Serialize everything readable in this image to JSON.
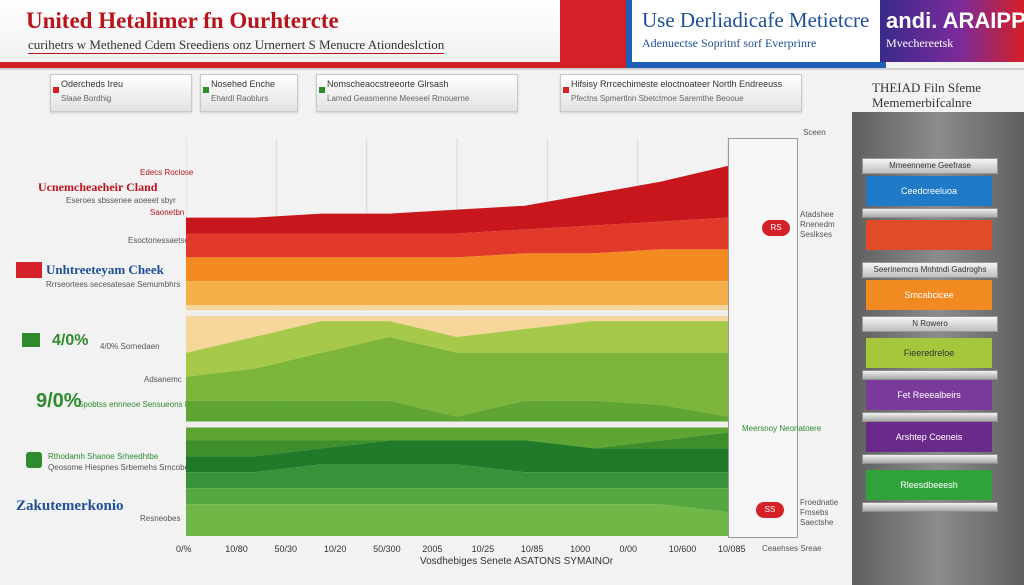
{
  "header": {
    "title": "United Hetalimer fn Ourhtercte",
    "subtitle": "curihetrs w Methened Cdem Sreediens onz Urnernert S Menucre Ationdeslction",
    "mid_title": "Use Derliadicafe Metietcre",
    "mid_subtitle": "Adenuectse Sopritnf sorf Everprinre",
    "right_title": "andi. ARAIPPE",
    "right_subtitle": "Mvechereetsk"
  },
  "infobar": [
    {
      "title": "Odercheds Ireu",
      "sub": "Slaae Bordhig"
    },
    {
      "title": "Nosehed Enche",
      "sub": "Ehardl Raoblurs"
    },
    {
      "title": "Nomscheaocstreeorte Glrsash",
      "sub": "Lamed Geasmenne Meeseel Rmouerne"
    },
    {
      "title": "Hifsisy Rrrcechimeste eloctnoateer Nortlh Endreeuss",
      "sub": "Pfectns Spmertlnn Sbetctmoe Saremthe Beooue"
    }
  ],
  "left_labels": [
    {
      "text": "Edecs Roclose",
      "color": "#b8141c"
    },
    {
      "text": "Ucnemcheaeheir Cland",
      "color": "#b8141c"
    },
    {
      "text": "Eseroes sbssenee aoeeet sbyr",
      "color": "#555555"
    },
    {
      "text": "Saonetbn",
      "color": "#b8141c"
    },
    {
      "text": "Esoctonessaetsee",
      "color": "#555555"
    },
    {
      "text": "Unhtreeteyam Cheek",
      "color": "#1f4f9a"
    },
    {
      "text": "Rrrseortees secesatesae Semumbhrs",
      "color": "#555555"
    },
    {
      "text": "4/0% Sornedaen",
      "color": "#2e8b2e"
    },
    {
      "text": "Adsanemc",
      "color": "#555555"
    },
    {
      "text": "Spobtss ennneoe Sensueons Nerhy",
      "color": "#2e8b2e"
    },
    {
      "text": "Rthodamh Shanoe Srheedhtbe",
      "color": "#2e8b2e"
    },
    {
      "text": "Qeosome Hiespnes Srbemehs Srncobe",
      "color": "#555555"
    },
    {
      "text": "Zakutemerkonio",
      "color": "#1f4f9a"
    },
    {
      "text": "Resneobes",
      "color": "#555555"
    }
  ],
  "left_percent": {
    "a": "4/0%",
    "b": "9/0%"
  },
  "chart_data": {
    "type": "area",
    "title": "",
    "xlabel": "Vosdhebiges Senete ASATONS SYMAINOr",
    "x_ticks": [
      "0/%",
      "10/80",
      "50/30",
      "10/20",
      "50/300",
      "2005",
      "10/25",
      "10/85",
      "1000",
      "0/00",
      "10/600",
      "10/085"
    ],
    "series": [
      {
        "color": "#c8161d",
        "values": [
          0.8,
          0.8,
          0.81,
          0.81,
          0.82,
          0.83,
          0.86,
          0.89,
          0.93
        ]
      },
      {
        "color": "#e23a2a",
        "values": [
          0.76,
          0.76,
          0.76,
          0.76,
          0.76,
          0.77,
          0.78,
          0.79,
          0.8
        ]
      },
      {
        "color": "#f48a22",
        "values": [
          0.7,
          0.7,
          0.7,
          0.7,
          0.7,
          0.71,
          0.71,
          0.72,
          0.72
        ]
      },
      {
        "color": "#f5b04a",
        "values": [
          0.64,
          0.64,
          0.64,
          0.64,
          0.64,
          0.64,
          0.64,
          0.64,
          0.64
        ]
      },
      {
        "color": "#f6d69a",
        "values": [
          0.58,
          0.58,
          0.58,
          0.58,
          0.58,
          0.58,
          0.58,
          0.58,
          0.58
        ]
      },
      {
        "color": "#a7c94a",
        "values": [
          0.46,
          0.5,
          0.54,
          0.54,
          0.5,
          0.52,
          0.54,
          0.54,
          0.54
        ]
      },
      {
        "color": "#7db43a",
        "values": [
          0.4,
          0.42,
          0.46,
          0.5,
          0.46,
          0.46,
          0.46,
          0.46,
          0.46
        ]
      },
      {
        "color": "#5ea533",
        "values": [
          0.34,
          0.34,
          0.34,
          0.34,
          0.3,
          0.34,
          0.34,
          0.33,
          0.3
        ]
      },
      {
        "color": "#3e8f2c",
        "values": [
          0.24,
          0.24,
          0.24,
          0.24,
          0.24,
          0.22,
          0.22,
          0.24,
          0.26
        ]
      },
      {
        "color": "#1f7a2a",
        "values": [
          0.2,
          0.2,
          0.22,
          0.24,
          0.24,
          0.24,
          0.22,
          0.22,
          0.22
        ]
      },
      {
        "color": "#36933a",
        "values": [
          0.16,
          0.16,
          0.18,
          0.18,
          0.18,
          0.16,
          0.16,
          0.16,
          0.16
        ]
      },
      {
        "color": "#55a83f",
        "values": [
          0.12,
          0.12,
          0.12,
          0.12,
          0.12,
          0.12,
          0.12,
          0.12,
          0.12
        ]
      },
      {
        "color": "#6fb847",
        "values": [
          0.08,
          0.08,
          0.08,
          0.08,
          0.08,
          0.08,
          0.08,
          0.08,
          0.06
        ]
      }
    ],
    "ylim": [
      0,
      1
    ],
    "legend": "none",
    "grid": true
  },
  "callouts": {
    "top_badge": "RS",
    "top_label": "Atadshee Rnenedm Seslkses",
    "mid_label": "Meersnoy Neonatoere",
    "bottom_badge": "SS",
    "bottom_label": "Froednatie Fmsebs Saectshe",
    "corner_top": "Sceen",
    "corner_bottom": "Ceaehses Sreae"
  },
  "side": {
    "head": "THEIAD Filn Sfeme Mememerbifcalnre",
    "cap_top": "Mmeenneme Geefrase",
    "blocks": [
      {
        "label": "Ceedcreeluoa",
        "color": "#1f7ac8"
      },
      {
        "label": "",
        "color": "#e24b2a"
      },
      {
        "label": "Smcabcicee",
        "color": "#f28a22"
      },
      {
        "label": "Fieeredreloe",
        "color": "#a6c63c"
      },
      {
        "label": "Fet Reeealbeirs",
        "color": "#7a3a9a"
      },
      {
        "label": "Arshtep Coeneis",
        "color": "#6a2a8a"
      },
      {
        "label": "Rleesdbeeesh",
        "color": "#2fa33a"
      }
    ],
    "mid_cap": "Seerinemcrs Mnhtndi Gadroghs",
    "cap_3": "N Rowero"
  }
}
